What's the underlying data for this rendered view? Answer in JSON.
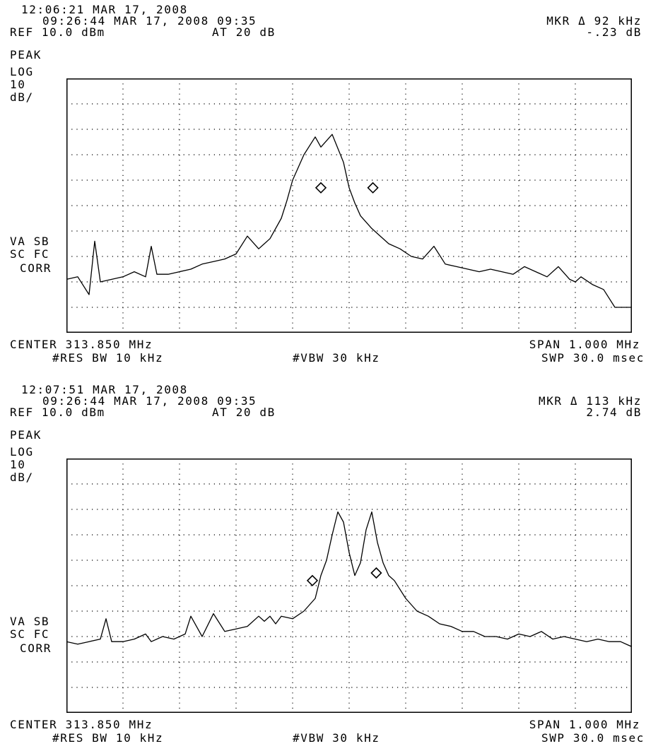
{
  "chart_data": [
    {
      "type": "line",
      "header": {
        "time": "12:06:21 MAR 17, 2008",
        "line2": "09:26:44 MAR 17, 2008 09:35",
        "ref": "REF 10.0 dBm",
        "atten": "AT 20 dB",
        "mkr": "MKR Δ 92 kHz",
        "mkr_value": "-.23 dB"
      },
      "side_labels": [
        "PEAK",
        "LOG",
        "10",
        "dB/",
        "VA SB",
        "SC FC",
        "CORR"
      ],
      "footer": {
        "center": "CENTER 313.850 MHz",
        "span": "SPAN 1.000 MHz",
        "rbw": "#RES BW 10 kHz",
        "vbw": "#VBW 30 kHz",
        "sweep": "SWP 30.0 msec"
      },
      "grid": true,
      "x_units": "MHz",
      "y_units": "dBm",
      "xlim": [
        313.35,
        314.35
      ],
      "ylim": [
        -90,
        10
      ],
      "series": [
        {
          "x": [
            313.35,
            313.37,
            313.39,
            313.4,
            313.41,
            313.43,
            313.45,
            313.47,
            313.49,
            313.5,
            313.51,
            313.53,
            313.55,
            313.57,
            313.59,
            313.61,
            313.63,
            313.65,
            313.67,
            313.69,
            313.7,
            313.71,
            313.73,
            313.74,
            313.75,
            313.77,
            313.79,
            313.8,
            313.82,
            313.84,
            313.85,
            313.86,
            313.87,
            313.89,
            313.9,
            313.92,
            313.94,
            313.96,
            313.98,
            314.0,
            314.02,
            314.04,
            314.06,
            314.08,
            314.1,
            314.12,
            314.14,
            314.16,
            314.18,
            314.2,
            314.22,
            314.24,
            314.25,
            314.26,
            314.28,
            314.3,
            314.32,
            314.35
          ],
          "y": [
            -69,
            -68,
            -75,
            -54,
            -70,
            -69,
            -68,
            -66,
            -68,
            -56,
            -67,
            -67,
            -66,
            -65,
            -63,
            -62,
            -61,
            -59,
            -52,
            -57,
            -55,
            -53,
            -45,
            -38,
            -30,
            -20,
            -13,
            -17,
            -12,
            -23,
            -33,
            -39,
            -44,
            -49,
            -51,
            -55,
            -57,
            -60,
            -61,
            -56,
            -63,
            -64,
            -65,
            -66,
            -65,
            -66,
            -67,
            -64,
            -66,
            -68,
            -64,
            -69,
            -70,
            -68,
            -71,
            -73,
            -80,
            -80
          ]
        }
      ],
      "markers": [
        {
          "x": 313.8,
          "y": -33
        },
        {
          "x": 313.892,
          "y": -33
        }
      ]
    },
    {
      "type": "line",
      "header": {
        "time": "12:07:51 MAR 17, 2008",
        "line2": "09:26:44 MAR 17, 2008 09:35",
        "ref": "REF 10.0 dBm",
        "atten": "AT 20 dB",
        "mkr": "MKR Δ 113 kHz",
        "mkr_value": "2.74 dB"
      },
      "side_labels": [
        "PEAK",
        "LOG",
        "10",
        "dB/",
        "VA SB",
        "SC FC",
        "CORR"
      ],
      "footer": {
        "center": "CENTER 313.850 MHz",
        "span": "SPAN 1.000 MHz",
        "rbw": "#RES BW 10 kHz",
        "vbw": "#VBW 30 kHz",
        "sweep": "SWP 30.0 msec"
      },
      "grid": true,
      "x_units": "MHz",
      "y_units": "dBm",
      "xlim": [
        313.35,
        314.35
      ],
      "ylim": [
        -90,
        10
      ],
      "series": [
        {
          "x": [
            313.35,
            313.37,
            313.39,
            313.41,
            313.42,
            313.43,
            313.45,
            313.47,
            313.49,
            313.5,
            313.52,
            313.54,
            313.56,
            313.57,
            313.59,
            313.61,
            313.63,
            313.65,
            313.67,
            313.69,
            313.7,
            313.71,
            313.72,
            313.73,
            313.75,
            313.77,
            313.79,
            313.8,
            313.81,
            313.82,
            313.83,
            313.84,
            313.85,
            313.86,
            313.87,
            313.88,
            313.89,
            313.9,
            313.91,
            313.92,
            313.93,
            313.95,
            313.97,
            313.99,
            314.01,
            314.03,
            314.05,
            314.07,
            314.09,
            314.11,
            314.13,
            314.15,
            314.17,
            314.19,
            314.21,
            314.23,
            314.25,
            314.27,
            314.29,
            314.31,
            314.33,
            314.35
          ],
          "y": [
            -62,
            -63,
            -62,
            -61,
            -53,
            -62,
            -62,
            -61,
            -59,
            -62,
            -60,
            -61,
            -59,
            -52,
            -60,
            -51,
            -58,
            -57,
            -56,
            -52,
            -54,
            -52,
            -55,
            -52,
            -53,
            -50,
            -45,
            -36,
            -30,
            -20,
            -11,
            -15,
            -27,
            -36,
            -31,
            -18,
            -11,
            -23,
            -31,
            -36,
            -38,
            -45,
            -50,
            -52,
            -55,
            -56,
            -58,
            -58,
            -60,
            -60,
            -61,
            -59,
            -60,
            -58,
            -61,
            -60,
            -61,
            -62,
            -61,
            -62,
            -62,
            -64
          ]
        }
      ],
      "markers": [
        {
          "x": 313.785,
          "y": -38
        },
        {
          "x": 313.898,
          "y": -35
        }
      ]
    }
  ]
}
